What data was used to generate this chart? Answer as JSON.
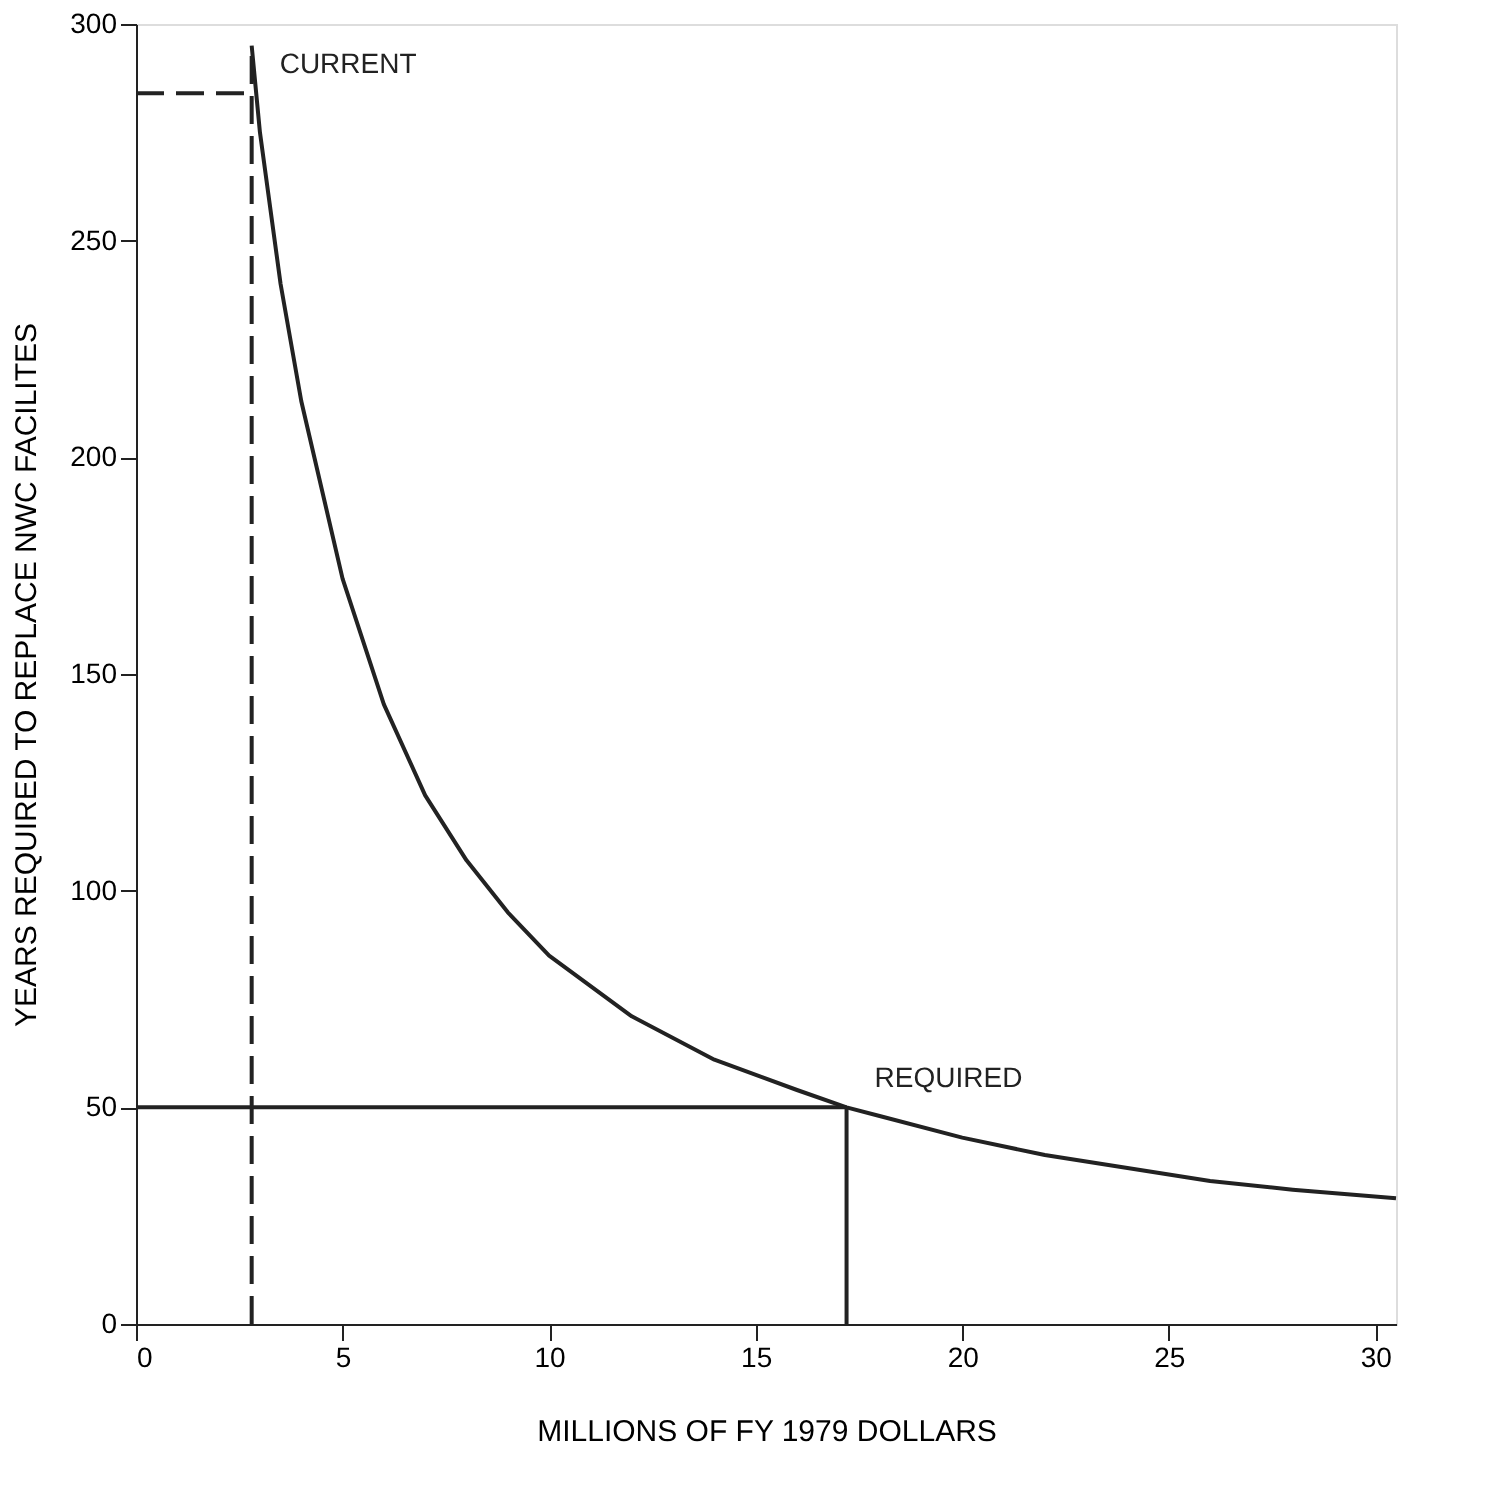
{
  "chart_data": {
    "type": "line",
    "xlabel": "MILLIONS OF FY 1979 DOLLARS",
    "ylabel": "YEARS REQUIRED TO REPLACE NWC FACILITES",
    "xlim": [
      0,
      30.5
    ],
    "ylim": [
      0,
      300
    ],
    "xticks": [
      0,
      5,
      10,
      15,
      20,
      25,
      30
    ],
    "yticks": [
      0,
      50,
      100,
      150,
      200,
      250,
      300
    ],
    "grid": false,
    "marker": "none",
    "series": [
      {
        "color": "#222222",
        "line_style": "solid",
        "x": [
          2.8,
          3,
          3.5,
          4,
          5,
          6,
          7,
          8,
          9,
          10,
          12,
          14,
          16,
          17.2,
          18,
          20,
          22,
          24,
          26,
          28,
          30.5
        ],
        "values": [
          295,
          275,
          240,
          213,
          172,
          143,
          122,
          107,
          95,
          85,
          71,
          61,
          54,
          50,
          48,
          43,
          39,
          36,
          33,
          31,
          29
        ]
      },
      {
        "color": "#222222",
        "line_style": "dashed",
        "x": [
          2.8,
          2.8
        ],
        "values": [
          0,
          295
        ]
      },
      {
        "color": "#222222",
        "line_style": "dashed",
        "x": [
          0,
          2.8
        ],
        "values": [
          284,
          284
        ]
      },
      {
        "color": "#222222",
        "line_style": "solid",
        "x": [
          0,
          17.2
        ],
        "values": [
          50,
          50
        ]
      },
      {
        "color": "#222222",
        "line_style": "solid",
        "x": [
          17.2,
          17.2
        ],
        "values": [
          0,
          50
        ]
      }
    ],
    "annotations": [
      {
        "text": "CURRENT",
        "x": 2.8,
        "y": 284
      },
      {
        "text": "REQUIRED",
        "x": 17.2,
        "y": 50
      }
    ]
  }
}
